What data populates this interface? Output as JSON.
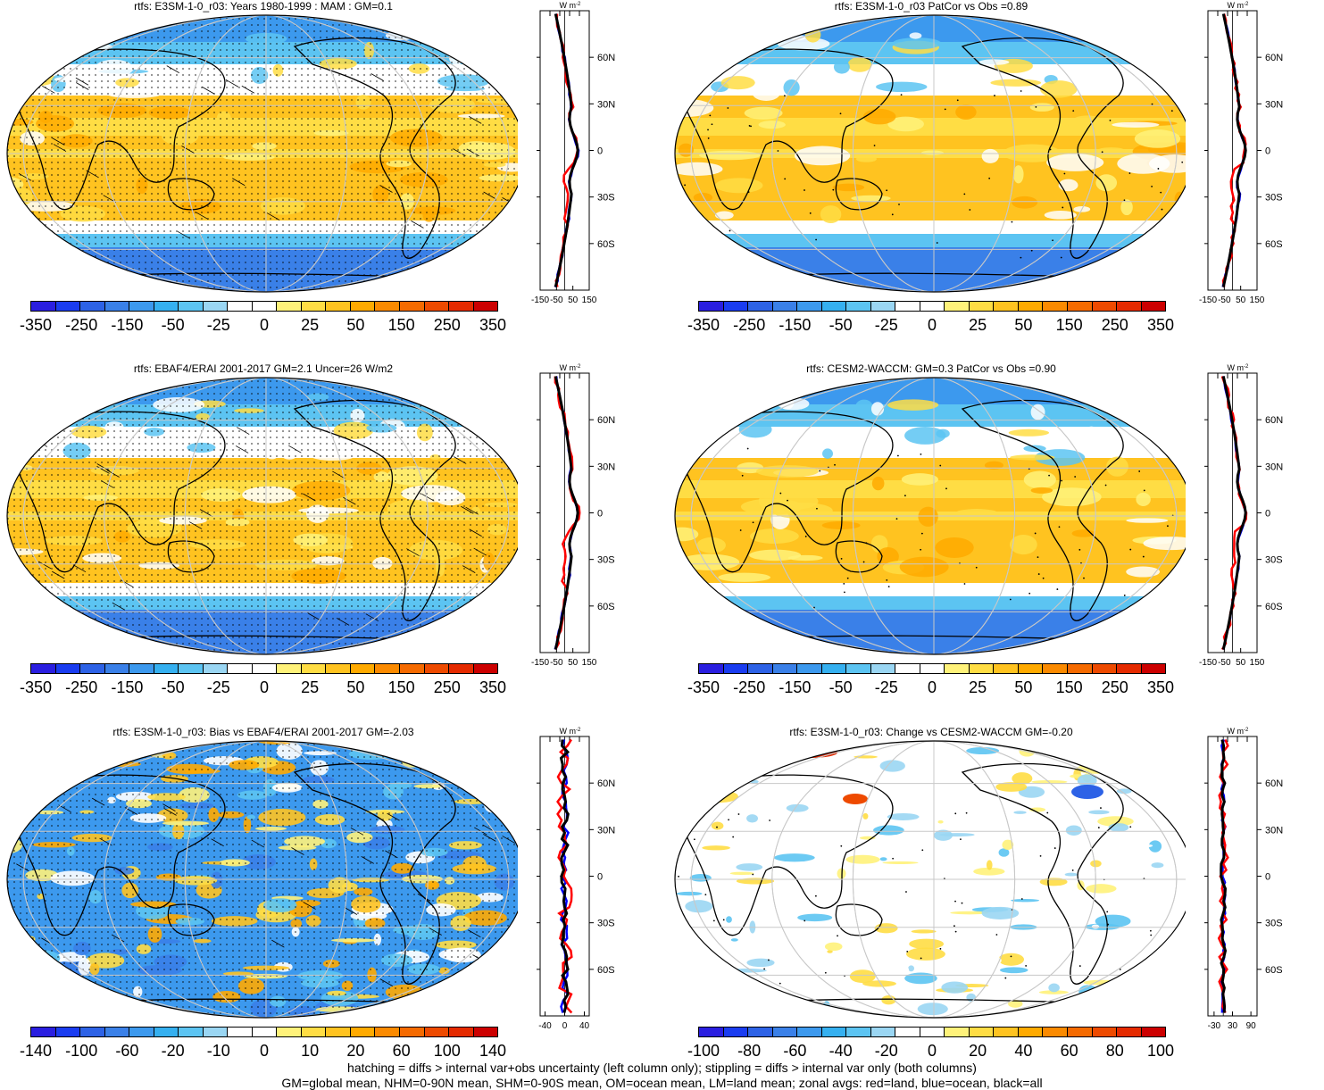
{
  "panels": [
    {
      "title": "rtfs: E3SM-1-0_r03: Years 1980-1999 : MAM : GM=0.1",
      "scale": "full",
      "zonal_ticks": [
        "-150",
        "-50",
        "50",
        "150"
      ],
      "zonal_range": [
        -150,
        150
      ]
    },
    {
      "title": "rtfs: E3SM-1-0_r03 PatCor vs Obs =0.89",
      "scale": "full",
      "zonal_ticks": [
        "-150",
        "-50",
        "50",
        "150"
      ],
      "zonal_range": [
        -150,
        150
      ]
    },
    {
      "title": "rtfs: EBAF4/ERAI 2001-2017 GM=2.1 Uncer=26 W/m2",
      "scale": "full",
      "zonal_ticks": [
        "-150",
        "-50",
        "50",
        "150"
      ],
      "zonal_range": [
        -150,
        150
      ]
    },
    {
      "title": "rtfs: CESM2-WACCM: GM=0.3 PatCor vs Obs =0.90",
      "scale": "full",
      "zonal_ticks": [
        "-150",
        "-50",
        "50",
        "150"
      ],
      "zonal_range": [
        -150,
        150
      ]
    },
    {
      "title": "rtfs: E3SM-1-0_r03: Bias vs EBAF4/ERAI 2001-2017 GM=-2.03",
      "scale": "bias",
      "zonal_ticks": [
        "-40",
        "0",
        "40"
      ],
      "zonal_range": [
        -50,
        50
      ]
    },
    {
      "title": "rtfs: E3SM-1-0_r03: Change vs CESM2-WACCM GM=-0.20",
      "scale": "change",
      "zonal_ticks": [
        "-30",
        "30",
        "90"
      ],
      "zonal_range": [
        -50,
        110
      ]
    }
  ],
  "colorbars": {
    "full": {
      "labels": [
        "-350",
        "-250",
        "-150",
        "-50",
        "-25",
        "0",
        "25",
        "50",
        "150",
        "250",
        "350"
      ]
    },
    "bias": {
      "labels": [
        "-140",
        "-100",
        "-60",
        "-20",
        "-10",
        "0",
        "10",
        "20",
        "60",
        "100",
        "140"
      ]
    },
    "change": {
      "labels": [
        "-100",
        "-80",
        "-60",
        "-40",
        "-20",
        "0",
        "20",
        "40",
        "60",
        "80",
        "100"
      ]
    }
  },
  "colorbar_colors": [
    "#2a1ee0",
    "#1a3cf0",
    "#2d62e6",
    "#3a80e8",
    "#3c99ee",
    "#35b0f0",
    "#5cc4f2",
    "#9ad6f3",
    "#ffffff",
    "#ffffff",
    "#fff27a",
    "#ffdd44",
    "#ffc320",
    "#ffaa00",
    "#fb8a00",
    "#f56a00",
    "#ee4a00",
    "#e52a00",
    "#cc0000"
  ],
  "zonal_unit": "W m",
  "zonal_unit_sup": "-2",
  "lat_labels": [
    "60N",
    "30N",
    "0",
    "30S",
    "60S"
  ],
  "footer": {
    "line1": "hatching = diffs > internal var+obs uncertainty (left column only); stippling = diffs > internal var only (both columns)",
    "line2": "GM=global mean, NHM=0-90N mean, SHM=0-90S mean, OM=ocean mean, LM=land mean; zonal avgs: red=land, blue=ocean, black=all"
  },
  "series_colors": {
    "land": "#ff0000",
    "ocean": "#0000ff",
    "all": "#000000"
  }
}
